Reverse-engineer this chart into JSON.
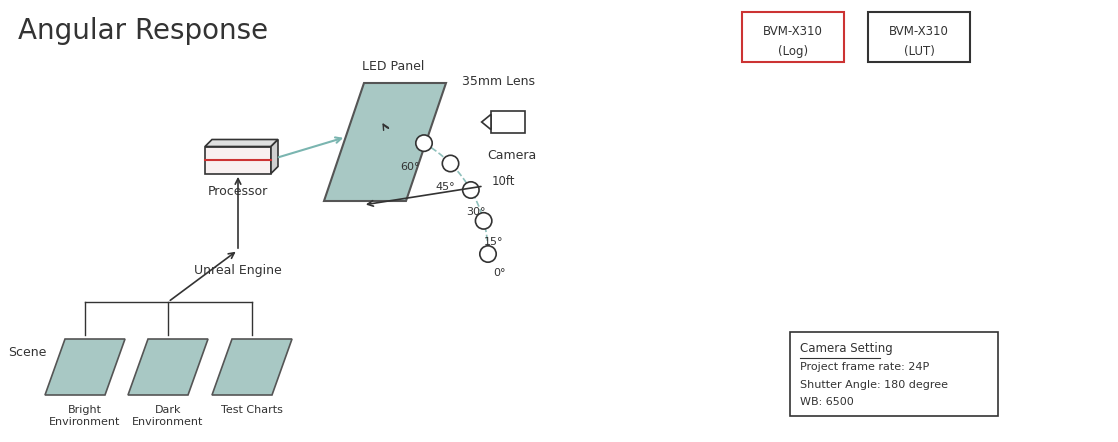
{
  "title": "Angular Response",
  "bg_color": "#ffffff",
  "text_color": "#333333",
  "teal_color": "#7ab5b0",
  "dashed_color": "#7ab5b0",
  "dark_color": "#333333",
  "red_outline_color": "#cc3333",
  "box1_label1": "BVM-X310",
  "box1_label2": "(Log)",
  "box2_label1": "BVM-X310",
  "box2_label2": "(LUT)",
  "cam_setting_title": "Camera Setting",
  "cam_setting_lines": [
    "Project frame rate: 24P",
    "Shutter Angle: 180 degree",
    "WB: 6500"
  ],
  "led_panel_label": "LED Panel",
  "processor_label": "Processor",
  "unreal_label": "Unreal Engine",
  "scene_label": "Scene",
  "bright_label": "Bright\nEnvironment",
  "dark_label": "Dark\nEnvironment",
  "test_label": "Test Charts",
  "camera_label": "Camera",
  "lens_label": "35mm Lens",
  "dist_label": "10ft",
  "angle_labels": {
    "0": "0°",
    "15": "15°",
    "30": "30°",
    "45": "45°",
    "60": "60°"
  },
  "led_fill": "#a8c8c4",
  "scene_fill": "#a8c8c4",
  "arc_color": "#7ab5b0",
  "arrow_color": "#333333"
}
